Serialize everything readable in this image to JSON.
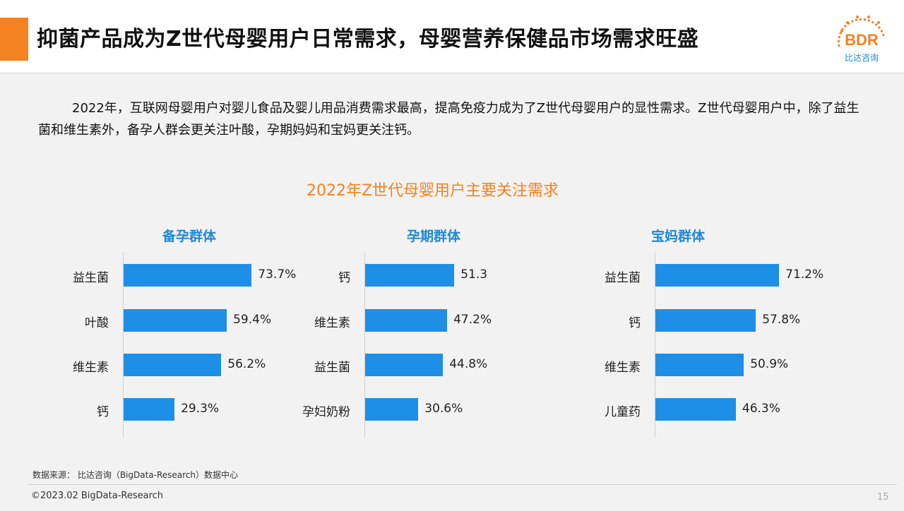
{
  "header": {
    "title": "抑菌产品成为Z世代母婴用户日常需求，母婴营养保健品市场需求旺盛",
    "accent_color": "#f58220",
    "logo": {
      "text": "BDR",
      "subtext": "比达咨询",
      "icon": "bdr-logo-icon"
    }
  },
  "intro": "2022年，互联网母婴用户对婴儿食品及婴儿用品消费需求最高，提高免疫力成为了Z世代母婴用户的显性需求。Z世代母婴用户中，除了益生菌和维生素外，备孕人群会更关注叶酸，孕期妈妈和宝妈更关注钙。",
  "chart_title": "2022年Z世代母婴用户主要关注需求",
  "chart_data": [
    {
      "type": "bar",
      "orientation": "horizontal",
      "title": "备孕群体",
      "categories": [
        "益生菌",
        "叶酸",
        "维生素",
        "钙"
      ],
      "values": [
        73.7,
        59.4,
        56.2,
        29.3
      ],
      "labels": [
        "73.7%",
        "59.4%",
        "56.2%",
        "29.3%"
      ],
      "unit": "%",
      "color": "#1e8fe6"
    },
    {
      "type": "bar",
      "orientation": "horizontal",
      "title": "孕期群体",
      "categories": [
        "钙",
        "维生素",
        "益生菌",
        "孕妇奶粉"
      ],
      "values": [
        51.3,
        47.2,
        44.8,
        30.6
      ],
      "labels": [
        "51.3",
        "47.2%",
        "44.8%",
        "30.6%"
      ],
      "unit": "%",
      "color": "#1e8fe6"
    },
    {
      "type": "bar",
      "orientation": "horizontal",
      "title": "宝妈群体",
      "categories": [
        "益生菌",
        "钙",
        "维生素",
        "儿童药"
      ],
      "values": [
        71.2,
        57.8,
        50.9,
        46.3
      ],
      "labels": [
        "71.2%",
        "57.8%",
        "50.9%",
        "46.3%"
      ],
      "unit": "%",
      "color": "#1e8fe6"
    }
  ],
  "footer": {
    "source": "数据来源： 比达咨询（BigData-Research）数据中心",
    "copyright": "©2023.02 BigData-Research",
    "page_number": "15"
  }
}
